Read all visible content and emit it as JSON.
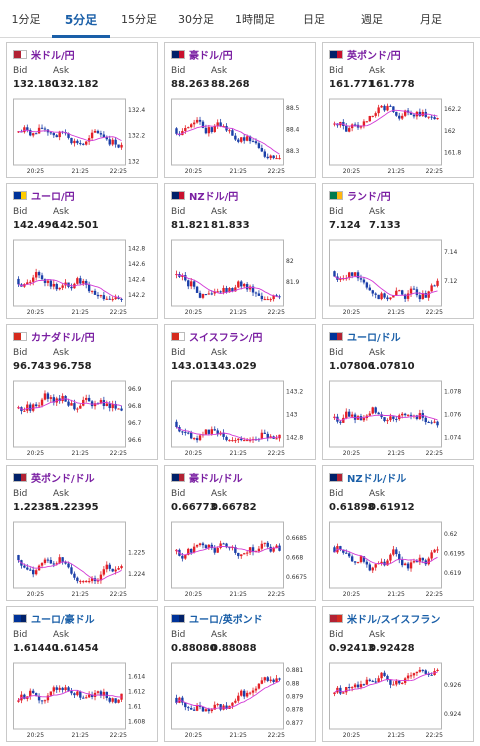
{
  "tabs": [
    {
      "label": "1分足",
      "active": false
    },
    {
      "label": "5分足",
      "active": true
    },
    {
      "label": "15分足",
      "active": false
    },
    {
      "label": "30分足",
      "active": false
    },
    {
      "label": "1時間足",
      "active": false
    },
    {
      "label": "日足",
      "active": false
    },
    {
      "label": "週足",
      "active": false
    },
    {
      "label": "月足",
      "active": false
    }
  ],
  "labels": {
    "bid": "Bid",
    "ask": "Ask"
  },
  "colors": {
    "up": "#e32027",
    "down": "#1b3fa8",
    "ma": "#d23ad6",
    "axis": "#b5b5b5",
    "title_purple": "#7a1fa2",
    "title_blue": "#1a5fa8",
    "tab_active": "#1a5fa8"
  },
  "cards": [
    {
      "pair": "米ドル/円",
      "title_color": "purple",
      "flag": [
        "#b22234",
        "#ffffff"
      ],
      "bid": "132.180",
      "ask": "132.182",
      "chart_data": {
        "type": "candlestick",
        "x_ticks": [
          "20:25",
          "21:25",
          "22:25"
        ],
        "y_ticks": [
          "132.4",
          "132.2",
          "132"
        ],
        "ylim": [
          132.0,
          132.45
        ]
      }
    },
    {
      "pair": "豪ドル/円",
      "title_color": "purple",
      "flag": [
        "#012169",
        "#c8102e"
      ],
      "bid": "88.263",
      "ask": "88.268",
      "chart_data": {
        "type": "candlestick",
        "x_ticks": [
          "20:25",
          "21:25",
          "22:25"
        ],
        "y_ticks": [
          "88.5",
          "88.4",
          "88.3"
        ],
        "ylim": [
          88.25,
          88.52
        ]
      }
    },
    {
      "pair": "英ポンド/円",
      "title_color": "purple",
      "flag": [
        "#012169",
        "#c8102e"
      ],
      "bid": "161.771",
      "ask": "161.778",
      "chart_data": {
        "type": "candlestick",
        "x_ticks": [
          "20:25",
          "21:25",
          "22:25"
        ],
        "y_ticks": [
          "162.2",
          "162",
          "161.8"
        ],
        "ylim": [
          161.72,
          162.25
        ]
      }
    },
    {
      "pair": "ユーロ/円",
      "title_color": "purple",
      "flag": [
        "#003399",
        "#ffcc00"
      ],
      "bid": "142.496",
      "ask": "142.501",
      "chart_data": {
        "type": "candlestick",
        "x_ticks": [
          "20:25",
          "21:25",
          "22:25"
        ],
        "y_ticks": [
          "142.8",
          "142.6",
          "142.4",
          "142.2"
        ],
        "ylim": [
          142.1,
          142.85
        ]
      }
    },
    {
      "pair": "NZドル/円",
      "title_color": "purple",
      "flag": [
        "#012169",
        "#c8102e"
      ],
      "bid": "81.821",
      "ask": "81.833",
      "chart_data": {
        "type": "candlestick",
        "x_ticks": [
          "20:25",
          "21:25",
          "22:25"
        ],
        "y_ticks": [
          "82",
          "81.9"
        ],
        "ylim": [
          81.8,
          82.08
        ]
      }
    },
    {
      "pair": "ランド/円",
      "title_color": "purple",
      "flag": [
        "#007a4d",
        "#ffb612"
      ],
      "bid": "7.124",
      "ask": "7.133",
      "chart_data": {
        "type": "candlestick",
        "x_ticks": [
          "20:25",
          "21:25",
          "22:25"
        ],
        "y_ticks": [
          "7.14",
          "7.12"
        ],
        "ylim": [
          7.105,
          7.145
        ]
      }
    },
    {
      "pair": "カナダドル/円",
      "title_color": "purple",
      "flag": [
        "#d52b1e",
        "#ffffff"
      ],
      "bid": "96.743",
      "ask": "96.758",
      "chart_data": {
        "type": "candlestick",
        "x_ticks": [
          "20:25",
          "21:25",
          "22:25"
        ],
        "y_ticks": [
          "96.9",
          "96.8",
          "96.7",
          "96.6"
        ],
        "ylim": [
          96.58,
          96.92
        ]
      }
    },
    {
      "pair": "スイスフラン/円",
      "title_color": "purple",
      "flag": [
        "#d52b1e",
        "#ffffff"
      ],
      "bid": "143.013",
      "ask": "143.029",
      "chart_data": {
        "type": "candlestick",
        "x_ticks": [
          "20:25",
          "21:25",
          "22:25"
        ],
        "y_ticks": [
          "143.2",
          "143",
          "142.8"
        ],
        "ylim": [
          142.75,
          143.25
        ]
      }
    },
    {
      "pair": "ユーロ/ドル",
      "title_color": "blue",
      "flag": [
        "#003399",
        "#b22234"
      ],
      "bid": "1.07806",
      "ask": "1.07810",
      "chart_data": {
        "type": "candlestick",
        "x_ticks": [
          "20:25",
          "21:25",
          "22:25"
        ],
        "y_ticks": [
          "1.078",
          "1.076",
          "1.074"
        ],
        "ylim": [
          1.0735,
          1.0785
        ]
      }
    },
    {
      "pair": "英ポンド/ドル",
      "title_color": "purple",
      "flag": [
        "#012169",
        "#b22234"
      ],
      "bid": "1.22385",
      "ask": "1.22395",
      "chart_data": {
        "type": "candlestick",
        "x_ticks": [
          "20:25",
          "21:25",
          "22:25"
        ],
        "y_ticks": [
          "1.225",
          "1.224"
        ],
        "ylim": [
          1.2235,
          1.2262
        ]
      }
    },
    {
      "pair": "豪ドル/ドル",
      "title_color": "purple",
      "flag": [
        "#012169",
        "#b22234"
      ],
      "bid": "0.66773",
      "ask": "0.66782",
      "chart_data": {
        "type": "candlestick",
        "x_ticks": [
          "20:25",
          "21:25",
          "22:25"
        ],
        "y_ticks": [
          "0.6685",
          "0.668",
          "0.6675"
        ],
        "ylim": [
          0.6673,
          0.6688
        ]
      }
    },
    {
      "pair": "NZドル/ドル",
      "title_color": "blue",
      "flag": [
        "#012169",
        "#b22234"
      ],
      "bid": "0.61898",
      "ask": "0.61912",
      "chart_data": {
        "type": "candlestick",
        "x_ticks": [
          "20:25",
          "21:25",
          "22:25"
        ],
        "y_ticks": [
          "0.62",
          "0.6195",
          "0.619"
        ],
        "ylim": [
          0.6187,
          0.6202
        ]
      }
    },
    {
      "pair": "ユーロ/豪ドル",
      "title_color": "blue",
      "flag": [
        "#003399",
        "#012169"
      ],
      "bid": "1.61440",
      "ask": "1.61454",
      "chart_data": {
        "type": "candlestick",
        "x_ticks": [
          "20:25",
          "21:25",
          "22:25"
        ],
        "y_ticks": [
          "1.614",
          "1.612",
          "1.61",
          "1.608"
        ],
        "ylim": [
          1.6075,
          1.6152
        ]
      }
    },
    {
      "pair": "ユーロ/英ポンド",
      "title_color": "blue",
      "flag": [
        "#003399",
        "#012169"
      ],
      "bid": "0.88080",
      "ask": "0.88088",
      "chart_data": {
        "type": "candlestick",
        "x_ticks": [
          "20:25",
          "21:25",
          "22:25"
        ],
        "y_ticks": [
          "0.881",
          "0.88",
          "0.879",
          "0.878",
          "0.877"
        ],
        "ylim": [
          0.8768,
          0.8812
        ]
      }
    },
    {
      "pair": "米ドル/スイスフラン",
      "title_color": "blue",
      "flag": [
        "#b22234",
        "#d52b1e"
      ],
      "bid": "0.92413",
      "ask": "0.92428",
      "chart_data": {
        "type": "candlestick",
        "x_ticks": [
          "20:25",
          "21:25",
          "22:25"
        ],
        "y_ticks": [
          "0.926",
          "0.924"
        ],
        "ylim": [
          0.9232,
          0.9272
        ]
      }
    }
  ]
}
